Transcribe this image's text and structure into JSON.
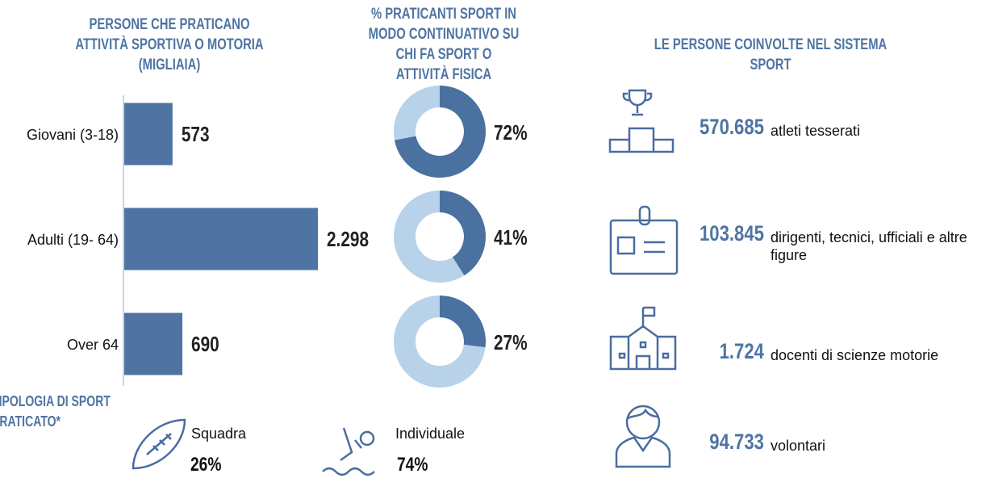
{
  "chart_data": [
    {
      "type": "bar",
      "title": "PERSONE CHE PRATICANO ATTIVITÀ SPORTIVA O MOTORIA (MIGLIAIA)",
      "categories": [
        "Giovani (3-18)",
        "Adulti (19- 64)",
        "Over 64"
      ],
      "values": [
        573,
        2298,
        690
      ],
      "value_labels": [
        "573",
        "2.298",
        "690"
      ],
      "color": "#4f74a3"
    },
    {
      "type": "donut",
      "title": "% PRATICANTI SPORT IN MODO CONTINUATIVO SU CHI FA SPORT O ATTIVITÀ FISICA",
      "values": [
        72,
        41,
        27
      ],
      "value_labels": [
        "72%",
        "41%",
        "27%"
      ],
      "color": "#4a71a0",
      "rest_color": "#b8d2ea"
    }
  ],
  "sport_types": {
    "title": "TIPOLOGIA DI SPORT PRATICATO*",
    "items": [
      {
        "label": "Squadra",
        "value": "26%"
      },
      {
        "label": "Individuale",
        "value": "74%"
      }
    ]
  },
  "people": {
    "title": "LE PERSONE COINVOLTE NEL SISTEMA SPORT",
    "items": [
      {
        "number": "570.685",
        "label": "atleti tesserati"
      },
      {
        "number": "103.845",
        "label": "dirigenti, tecnici, ufficiali e altre figure"
      },
      {
        "number": "1.724",
        "label": "docenti di scienze motorie"
      },
      {
        "number": "94.733",
        "label": "volontari"
      }
    ]
  }
}
